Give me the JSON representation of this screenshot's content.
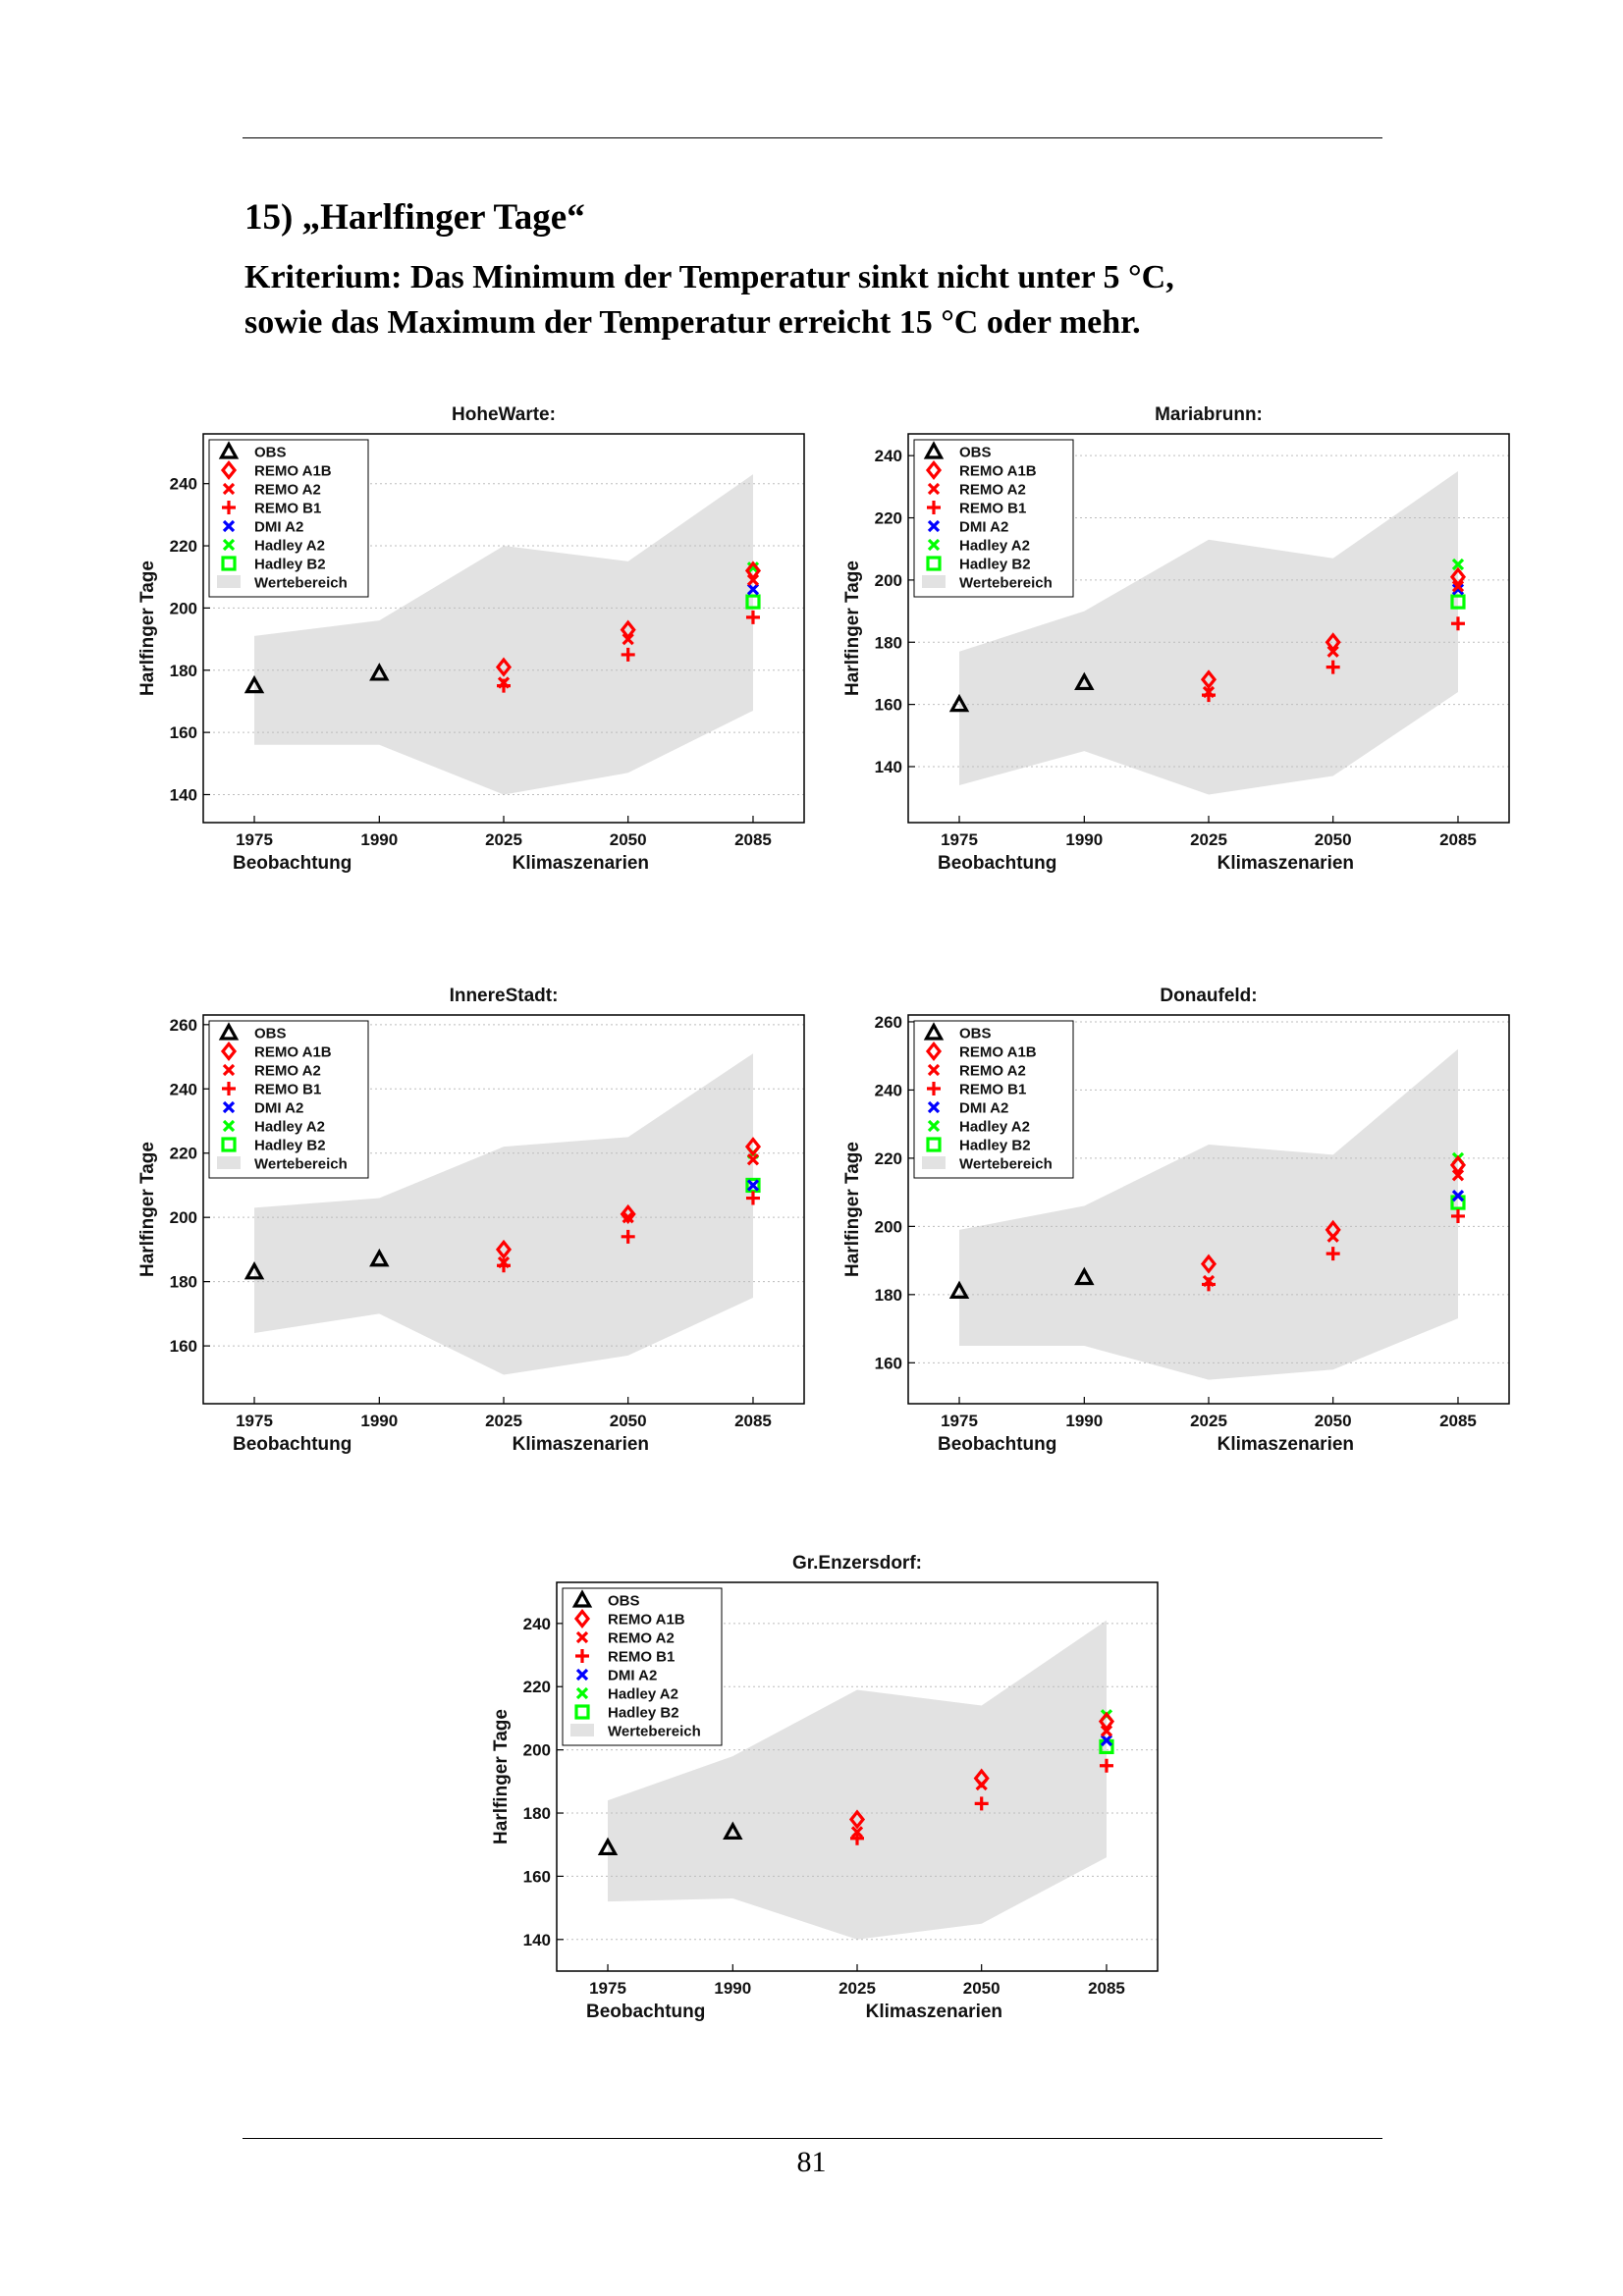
{
  "page": {
    "section_title": "15)  „Harlfinger Tage“",
    "criterion_line1": "Kriterium: Das Minimum der Temperatur sinkt nicht unter 5 °C,",
    "criterion_line2": "sowie das Maximum der Temperatur erreicht 15 °C oder mehr.",
    "page_number": "81"
  },
  "colors": {
    "OBS": "#000000",
    "REMO A1B": "#ff0000",
    "REMO A2": "#ff0000",
    "REMO B1": "#ff0000",
    "DMI A2": "#0000ff",
    "Hadley A2": "#00ff00",
    "Hadley B2": "#00ff00",
    "Wertebereich": "#e2e2e2"
  },
  "chart_data": [
    {
      "type": "scatter",
      "title": "HoheWarte:",
      "ylabel": "Harlfinger Tage",
      "x_ticks": [
        "1975",
        "1990",
        "2025",
        "2050",
        "2085"
      ],
      "x_group_labels": [
        "Beobachtung",
        "Klimaszenarien"
      ],
      "ylim": [
        131,
        256
      ],
      "yticks": [
        140,
        160,
        180,
        200,
        220,
        240
      ],
      "grid": true,
      "legend_position": "top-left",
      "legend": [
        "OBS",
        "REMO A1B",
        "REMO A2",
        "REMO B1",
        "DMI A2",
        "Hadley A2",
        "Hadley B2",
        "Wertebereich"
      ],
      "range": {
        "upper": [
          191,
          196,
          220,
          215,
          243
        ],
        "lower": [
          156,
          156,
          140,
          147,
          167
        ]
      },
      "obs": {
        "1975": 175,
        "1990": 179
      },
      "scenarios": {
        "2025": {
          "REMO A1B": 181,
          "REMO A2": 176,
          "REMO B1": 175
        },
        "2050": {
          "REMO A1B": 193,
          "REMO A2": 190,
          "REMO B1": 185
        },
        "2085": {
          "REMO A1B": 212,
          "REMO A2": 209,
          "REMO B1": 197,
          "DMI A2": 206,
          "Hadley A2": 213,
          "Hadley B2": 202
        }
      }
    },
    {
      "type": "scatter",
      "title": "Mariabrunn:",
      "ylabel": "Harlfinger Tage",
      "x_ticks": [
        "1975",
        "1990",
        "2025",
        "2050",
        "2085"
      ],
      "x_group_labels": [
        "Beobachtung",
        "Klimaszenarien"
      ],
      "ylim": [
        122,
        247
      ],
      "yticks": [
        140,
        160,
        180,
        200,
        220,
        240
      ],
      "grid": true,
      "legend_position": "top-left",
      "legend": [
        "OBS",
        "REMO A1B",
        "REMO A2",
        "REMO B1",
        "DMI A2",
        "Hadley A2",
        "Hadley B2",
        "Wertebereich"
      ],
      "range": {
        "upper": [
          177,
          190,
          213,
          207,
          235
        ],
        "lower": [
          134,
          145,
          131,
          137,
          164
        ]
      },
      "obs": {
        "1975": 160,
        "1990": 167
      },
      "scenarios": {
        "2025": {
          "REMO A1B": 168,
          "REMO A2": 164,
          "REMO B1": 163
        },
        "2050": {
          "REMO A1B": 180,
          "REMO A2": 177,
          "REMO B1": 172
        },
        "2085": {
          "REMO A1B": 201,
          "REMO A2": 198,
          "REMO B1": 186,
          "DMI A2": 197,
          "Hadley A2": 205,
          "Hadley B2": 193
        }
      }
    },
    {
      "type": "scatter",
      "title": "InnereStadt:",
      "ylabel": "Harlfinger Tage",
      "x_ticks": [
        "1975",
        "1990",
        "2025",
        "2050",
        "2085"
      ],
      "x_group_labels": [
        "Beobachtung",
        "Klimaszenarien"
      ],
      "ylim": [
        142,
        263
      ],
      "yticks": [
        160,
        180,
        200,
        220,
        240,
        260
      ],
      "grid": true,
      "legend_position": "top-left",
      "legend": [
        "OBS",
        "REMO A1B",
        "REMO A2",
        "REMO B1",
        "DMI A2",
        "Hadley A2",
        "Hadley B2",
        "Wertebereich"
      ],
      "range": {
        "upper": [
          203,
          206,
          222,
          225,
          251
        ],
        "lower": [
          164,
          170,
          151,
          157,
          175
        ]
      },
      "obs": {
        "1975": 183,
        "1990": 187
      },
      "scenarios": {
        "2025": {
          "REMO A1B": 190,
          "REMO A2": 186,
          "REMO B1": 185
        },
        "2050": {
          "REMO A1B": 201,
          "REMO A2": 200,
          "REMO B1": 194
        },
        "2085": {
          "REMO A1B": 222,
          "REMO A2": 218,
          "REMO B1": 206,
          "DMI A2": 210,
          "Hadley A2": 220,
          "Hadley B2": 210
        }
      }
    },
    {
      "type": "scatter",
      "title": "Donaufeld:",
      "ylabel": "Harlfinger Tage",
      "x_ticks": [
        "1975",
        "1990",
        "2025",
        "2050",
        "2085"
      ],
      "x_group_labels": [
        "Beobachtung",
        "Klimaszenarien"
      ],
      "ylim": [
        148,
        262
      ],
      "yticks": [
        160,
        180,
        200,
        220,
        240,
        260
      ],
      "grid": true,
      "legend_position": "top-left",
      "legend": [
        "OBS",
        "REMO A1B",
        "REMO A2",
        "REMO B1",
        "DMI A2",
        "Hadley A2",
        "Hadley B2",
        "Wertebereich"
      ],
      "range": {
        "upper": [
          199,
          206,
          224,
          221,
          252
        ],
        "lower": [
          165,
          165,
          155,
          158,
          173
        ]
      },
      "obs": {
        "1975": 181,
        "1990": 185
      },
      "scenarios": {
        "2025": {
          "REMO A1B": 189,
          "REMO A2": 184,
          "REMO B1": 183
        },
        "2050": {
          "REMO A1B": 199,
          "REMO A2": 197,
          "REMO B1": 192
        },
        "2085": {
          "REMO A1B": 218,
          "REMO A2": 215,
          "REMO B1": 203,
          "DMI A2": 209,
          "Hadley A2": 220,
          "Hadley B2": 207
        }
      }
    },
    {
      "type": "scatter",
      "title": "Gr.Enzersdorf:",
      "ylabel": "Harlfinger Tage",
      "x_ticks": [
        "1975",
        "1990",
        "2025",
        "2050",
        "2085"
      ],
      "x_group_labels": [
        "Beobachtung",
        "Klimaszenarien"
      ],
      "ylim": [
        130,
        253
      ],
      "yticks": [
        140,
        160,
        180,
        200,
        220,
        240
      ],
      "grid": true,
      "legend_position": "top-left",
      "legend": [
        "OBS",
        "REMO A1B",
        "REMO A2",
        "REMO B1",
        "DMI A2",
        "Hadley A2",
        "Hadley B2",
        "Wertebereich"
      ],
      "range": {
        "upper": [
          184,
          198,
          219,
          214,
          241
        ],
        "lower": [
          152,
          153,
          140,
          145,
          166
        ]
      },
      "obs": {
        "1975": 169,
        "1990": 174
      },
      "scenarios": {
        "2025": {
          "REMO A1B": 178,
          "REMO A2": 174,
          "REMO B1": 172
        },
        "2050": {
          "REMO A1B": 191,
          "REMO A2": 189,
          "REMO B1": 183
        },
        "2085": {
          "REMO A1B": 209,
          "REMO A2": 206,
          "REMO B1": 195,
          "DMI A2": 203,
          "Hadley A2": 211,
          "Hadley B2": 201
        }
      }
    }
  ]
}
